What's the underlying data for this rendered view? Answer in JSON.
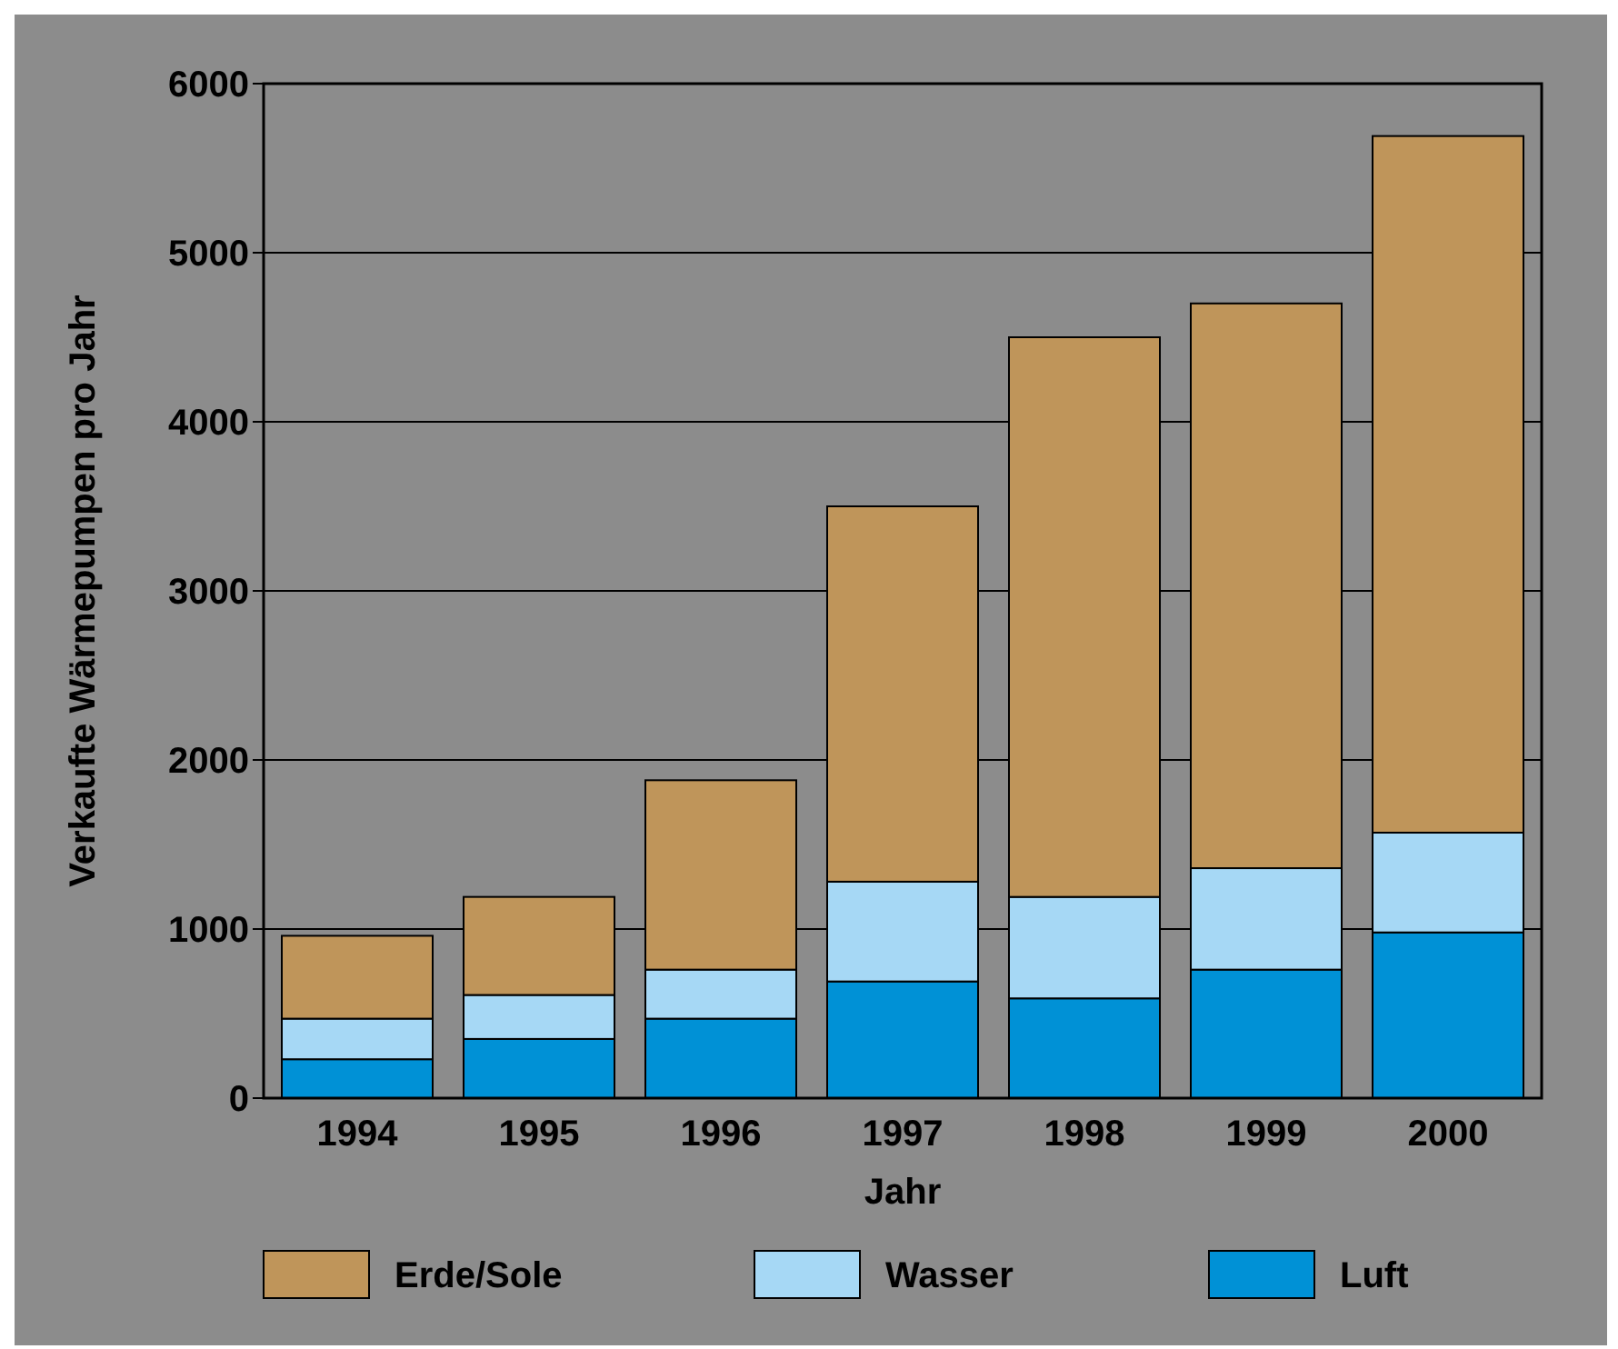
{
  "chart_data": {
    "type": "bar",
    "stacked": true,
    "xlabel": "Jahr",
    "ylabel": "Verkaufte Wärmepumpen pro Jahr",
    "categories": [
      "1994",
      "1995",
      "1996",
      "1997",
      "1998",
      "1999",
      "2000"
    ],
    "series": [
      {
        "name": "Luft",
        "color": "#0091d6",
        "values": [
          230,
          350,
          470,
          690,
          590,
          760,
          980
        ]
      },
      {
        "name": "Wasser",
        "color": "#a6d8f5",
        "values": [
          240,
          260,
          290,
          590,
          600,
          600,
          590
        ]
      },
      {
        "name": "Erde/Sole",
        "color": "#bf955a",
        "values": [
          490,
          580,
          1120,
          2220,
          3310,
          3340,
          4120
        ]
      }
    ],
    "ylim": [
      0,
      6000
    ],
    "yticks": [
      0,
      1000,
      2000,
      3000,
      4000,
      5000,
      6000
    ],
    "grid": "y",
    "legend": "bottom"
  }
}
